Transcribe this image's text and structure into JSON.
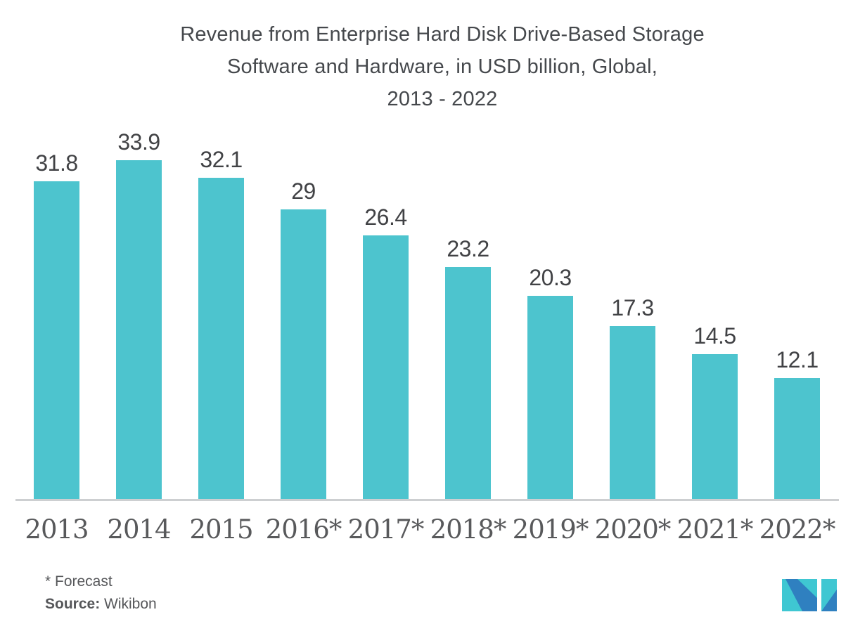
{
  "title": {
    "line1": "Revenue from Enterprise Hard Disk Drive-Based Storage",
    "line2": "Software and Hardware, in USD billion, Global,",
    "line3": "2013 - 2022"
  },
  "chart_data": {
    "type": "bar",
    "title": "Revenue from Enterprise Hard Disk Drive-Based Storage Software and Hardware, in USD billion, Global, 2013 - 2022",
    "categories": [
      "2013",
      "2014",
      "2015",
      "2016*",
      "2017*",
      "2018*",
      "2019*",
      "2020*",
      "2021*",
      "2022*"
    ],
    "values": [
      31.8,
      33.9,
      32.1,
      29,
      26.4,
      23.2,
      20.3,
      17.3,
      14.5,
      12.1
    ],
    "value_labels": [
      "31.8",
      "33.9",
      "32.1",
      "29",
      "26.4",
      "23.2",
      "20.3",
      "17.3",
      "14.5",
      "12.1"
    ],
    "xlabel": "",
    "ylabel": "",
    "ylim": [
      0,
      36
    ],
    "grid": false,
    "legend": "none",
    "bar_color": "#4DC4CE"
  },
  "footer": {
    "forecast_note": "* Forecast",
    "source_label": "Source:",
    "source_value": "Wikibon"
  },
  "colors": {
    "bar": "#4DC4CE",
    "title_text": "#45484C",
    "value_text": "#414245",
    "axis_label_text": "#58595B",
    "axis_line": "#CDCFD1",
    "footer_text": "#56575A",
    "logo_teal": "#3FC7D2",
    "logo_blue": "#2F80C0"
  }
}
